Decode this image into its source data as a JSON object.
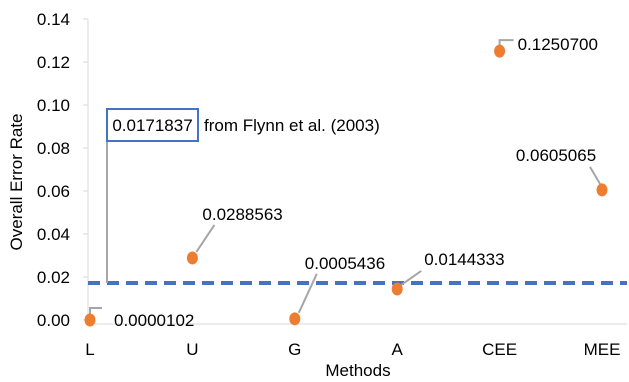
{
  "chart_data": {
    "type": "scatter",
    "categories": [
      "L",
      "U",
      "G",
      "A",
      "CEE",
      "MEE"
    ],
    "values": [
      1.02e-05,
      0.0288563,
      0.0005436,
      0.0144333,
      0.12507,
      0.0605065
    ],
    "labels": [
      "0.0000102",
      "0.0288563",
      "0.0005436",
      "0.0144333",
      "0.1250700",
      "0.0605065"
    ],
    "xlabel": "Methods",
    "ylabel": "Overall Error Rate",
    "ylim": [
      0,
      0.14
    ],
    "yticks": [
      "0.00",
      "0.02",
      "0.04",
      "0.06",
      "0.08",
      "0.10",
      "0.12",
      "0.14"
    ],
    "grid": false,
    "reference_line": {
      "value": 0.0171837,
      "value_label": "0.0171837",
      "source_label": "from Flynn et al. (2003)",
      "style": "dashed"
    },
    "colors": {
      "points": "#ED7D31",
      "reference_line": "#4472C4",
      "callout_box": "#4472C4",
      "leader_lines": "#A6A6A6",
      "axis": "#D9D9D9"
    }
  }
}
